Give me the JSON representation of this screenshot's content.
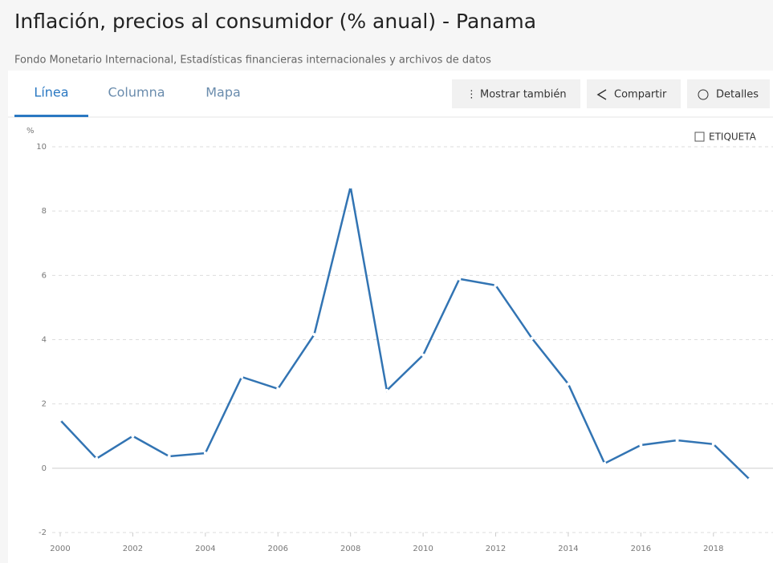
{
  "header": {
    "title": "Inflación, precios al consumidor (% anual) - Panama",
    "subtitle": "Fondo Monetario Internacional, Estadísticas financieras internacionales y archivos de datos"
  },
  "tabs": [
    "Línea",
    "Columna",
    "Mapa"
  ],
  "buttons": [
    "Mostrar también",
    "Compartir",
    "Detalles"
  ],
  "checkbox": "ETIQUETA",
  "chart_data": {
    "type": "line",
    "ylabel": "%",
    "x": [
      2000,
      2001,
      2002,
      2003,
      2004,
      2005,
      2006,
      2007,
      2008,
      2009,
      2010,
      2011,
      2012,
      2013,
      2014,
      2015,
      2016,
      2017,
      2018,
      2019
    ],
    "series": [
      {
        "name": "Panama",
        "color": "#3274b3",
        "values": [
          1.5,
          0.3,
          1.0,
          0.37,
          0.47,
          2.84,
          2.47,
          4.16,
          8.75,
          2.42,
          3.52,
          5.89,
          5.69,
          4.04,
          2.62,
          0.15,
          0.72,
          0.87,
          0.75,
          -0.35
        ]
      }
    ],
    "xlim": [
      2000,
      2019
    ],
    "xticks": [
      2000,
      2002,
      2004,
      2006,
      2008,
      2010,
      2012,
      2014,
      2016,
      2018
    ],
    "ylim": [
      -2,
      10
    ],
    "yticks": [
      -2,
      0,
      2,
      4,
      6,
      8,
      10
    ],
    "grid": true
  }
}
